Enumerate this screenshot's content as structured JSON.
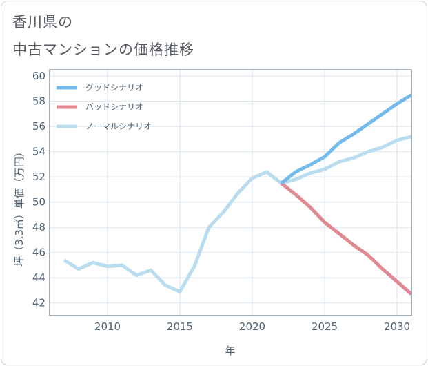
{
  "title_line1": "香川県の",
  "title_line2": "中古マンションの価格推移",
  "chart_data": {
    "type": "line",
    "title": "香川県の中古マンションの価格推移",
    "xlabel": "年",
    "ylabel": "坪（3.3㎡）単価（万円）",
    "xlim": [
      2006,
      2031
    ],
    "ylim": [
      41,
      60.5
    ],
    "xticks": [
      2010,
      2015,
      2020,
      2025,
      2030
    ],
    "yticks": [
      42,
      44,
      46,
      48,
      50,
      52,
      54,
      56,
      58,
      60
    ],
    "legend_position": "top-left",
    "series": [
      {
        "name": "グッドシナリオ",
        "color": "#74bbec",
        "x": [
          2022,
          2023,
          2024,
          2025,
          2026,
          2027,
          2028,
          2029,
          2030,
          2031
        ],
        "y": [
          51.5,
          52.4,
          52.95,
          53.6,
          54.7,
          55.4,
          56.2,
          57.0,
          57.8,
          58.5
        ]
      },
      {
        "name": "バッドシナリオ",
        "color": "#df8992",
        "x": [
          2022,
          2023,
          2024,
          2025,
          2026,
          2027,
          2028,
          2029,
          2030,
          2031
        ],
        "y": [
          51.5,
          50.6,
          49.6,
          48.4,
          47.5,
          46.6,
          45.8,
          44.7,
          43.7,
          42.7
        ]
      },
      {
        "name": "ノーマルシナリオ",
        "color": "#b9ddee",
        "x": [
          2007,
          2008,
          2009,
          2010,
          2011,
          2012,
          2013,
          2014,
          2015,
          2016,
          2017,
          2018,
          2019,
          2020,
          2021,
          2022,
          2023,
          2024,
          2025,
          2026,
          2027,
          2028,
          2029,
          2030,
          2031
        ],
        "y": [
          45.4,
          44.7,
          45.2,
          44.9,
          45.0,
          44.2,
          44.6,
          43.4,
          42.9,
          44.9,
          48.0,
          49.2,
          50.7,
          51.9,
          52.4,
          51.5,
          51.8,
          52.3,
          52.6,
          53.2,
          53.5,
          54.0,
          54.35,
          54.9,
          55.2
        ]
      }
    ]
  }
}
